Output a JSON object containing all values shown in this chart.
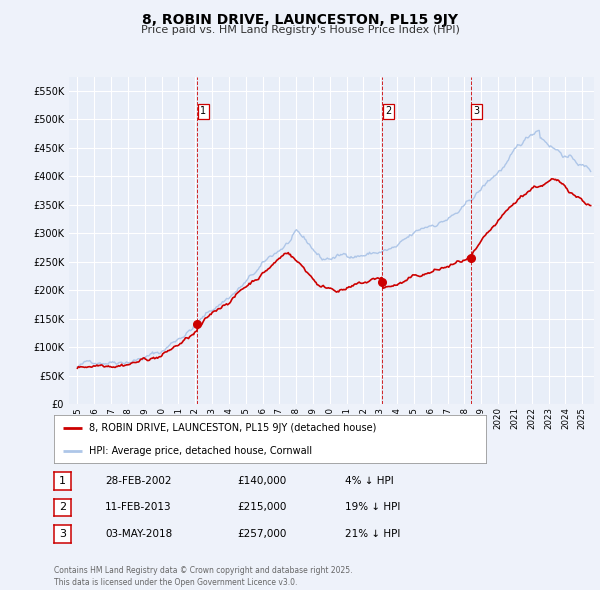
{
  "title": "8, ROBIN DRIVE, LAUNCESTON, PL15 9JY",
  "subtitle": "Price paid vs. HM Land Registry's House Price Index (HPI)",
  "bg_color": "#eef2fa",
  "plot_bg_color": "#e8eef8",
  "grid_color": "#ffffff",
  "hpi_color": "#aec6e8",
  "sale_color": "#cc0000",
  "sale_label": "8, ROBIN DRIVE, LAUNCESTON, PL15 9JY (detached house)",
  "hpi_label": "HPI: Average price, detached house, Cornwall",
  "vline_color": "#cc0000",
  "marker_color": "#cc0000",
  "transactions": [
    {
      "label": "1",
      "date": "28-FEB-2002",
      "price": 140000,
      "pct": "4%",
      "year": 2002.12
    },
    {
      "label": "2",
      "date": "11-FEB-2013",
      "price": 215000,
      "pct": "19%",
      "year": 2013.12
    },
    {
      "label": "3",
      "date": "03-MAY-2018",
      "price": 257000,
      "pct": "21%",
      "year": 2018.37
    }
  ],
  "footer": "Contains HM Land Registry data © Crown copyright and database right 2025.\nThis data is licensed under the Open Government Licence v3.0.",
  "ylim": [
    0,
    575000
  ],
  "yticks": [
    0,
    50000,
    100000,
    150000,
    200000,
    250000,
    300000,
    350000,
    400000,
    450000,
    500000,
    550000
  ],
  "xlim_start": 1994.5,
  "xlim_end": 2025.7
}
